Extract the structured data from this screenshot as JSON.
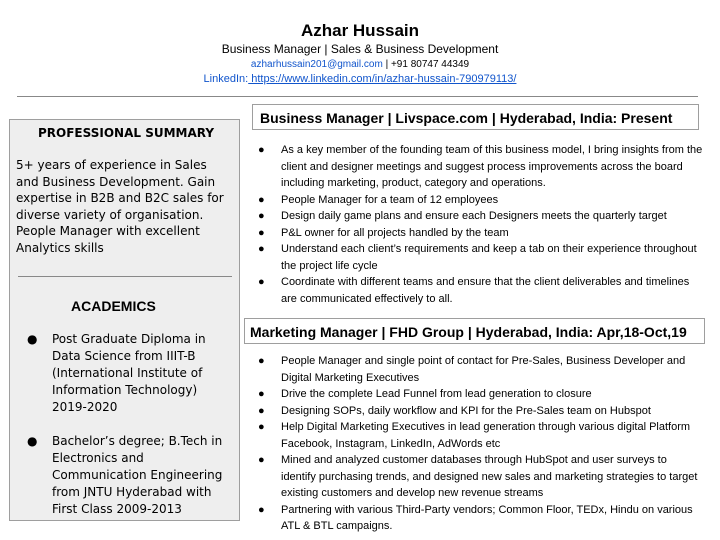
{
  "header": {
    "name": "Azhar Hussain",
    "subtitle": "Business Manager | Sales & Business Development",
    "email": "azharhussain201@gmail.com",
    "phone_sep": " | +91 80747 44349",
    "linkedin_label": "LinkedIn:",
    "linkedin_url": " https://www.linkedin.com/in/azhar-hussain-790979113/"
  },
  "sidebar": {
    "summary_heading": "PROFESSIONAL SUMMARY",
    "summary_text": "5+ years of experience in Sales and Business Development. Gain expertise in B2B and B2C sales for diverse variety of organisation. People Manager with excellent Analytics skills",
    "academics_heading": "ACADEMICS",
    "academics": [
      "Post Graduate Diploma in Data Science  from IIIT-B (International Institute of Information Technology) 2019-2020",
      "Bachelor’s degree; B.Tech in Electronics and Communication Engineering from JNTU Hyderabad with First Class 2009-2013"
    ]
  },
  "jobs": [
    {
      "title": "Business Manager   | Livspace.com   | Hyderabad, India: Present",
      "bullets": [
        "As a key member of the founding team of this business model, I bring insights from the client and designer meetings and suggest process improvements across the board including marketing, product, category and operations.",
        "People Manager for a team of 12 employees",
        "Design daily game plans and ensure each Designers meets the quarterly target",
        "P&L owner for all projects handled by the team",
        "Understand each client’s requirements and keep a tab on their experience throughout the project life cycle",
        "Coordinate with different teams and ensure that the client deliverables and timelines are communicated effectively to all."
      ]
    },
    {
      "title": "Marketing Manager |  FHD Group  | Hyderabad, India: Apr,18-Oct,19",
      "bullets": [
        "People Manager and single point of contact for Pre-Sales, Business Developer and Digital Marketing Executives",
        "Drive the complete Lead Funnel from lead generation to closure",
        "Designing SOPs, daily workflow and KPI for the Pre-Sales team on Hubspot",
        "Help Digital Marketing Executives in lead generation through various digital Platform Facebook, Instagram, LinkedIn, AdWords etc",
        "Mined and analyzed customer databases through HubSpot and user surveys to identify purchasing trends, and designed new sales and marketing strategies to target existing customers and develop new revenue streams",
        "Partnering with various Third-Party vendors; Common Floor, TEDx, Hindu on various ATL & BTL campaigns."
      ]
    }
  ],
  "bullet_glyph": "●"
}
